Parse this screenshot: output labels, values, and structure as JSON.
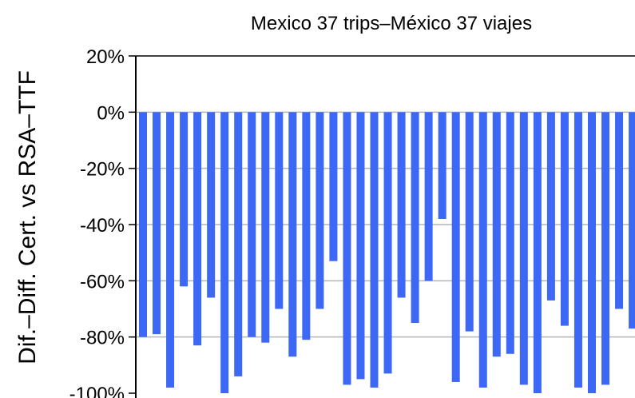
{
  "chart_data": {
    "type": "bar",
    "title": "Mexico 37 trips–México 37 viajes",
    "ylabel": "Dif.–Diff. Cert. vs RSA–TTF",
    "xlabel": "",
    "ylim": [
      -100,
      20
    ],
    "yticks": [
      {
        "value": 20,
        "label": "20%"
      },
      {
        "value": 0,
        "label": "0%"
      },
      {
        "value": -20,
        "label": "-20%"
      },
      {
        "value": -40,
        "label": "-40%"
      },
      {
        "value": -60,
        "label": "-60%"
      },
      {
        "value": -80,
        "label": "-80%"
      },
      {
        "value": -100,
        "label": "-100%"
      }
    ],
    "grid": true,
    "bar_color": "#3d67f5",
    "values": [
      -80,
      -79,
      -98,
      -62,
      -83,
      -66,
      -100,
      -94,
      -80,
      -82,
      -70,
      -87,
      -81,
      -70,
      -53,
      -97,
      -95,
      -98,
      -93,
      -66,
      -75,
      -60,
      -38,
      -96,
      -78,
      -98,
      -87,
      -86,
      -97,
      -100,
      -67,
      -76,
      -98,
      -100,
      -97,
      -70,
      -77
    ]
  }
}
